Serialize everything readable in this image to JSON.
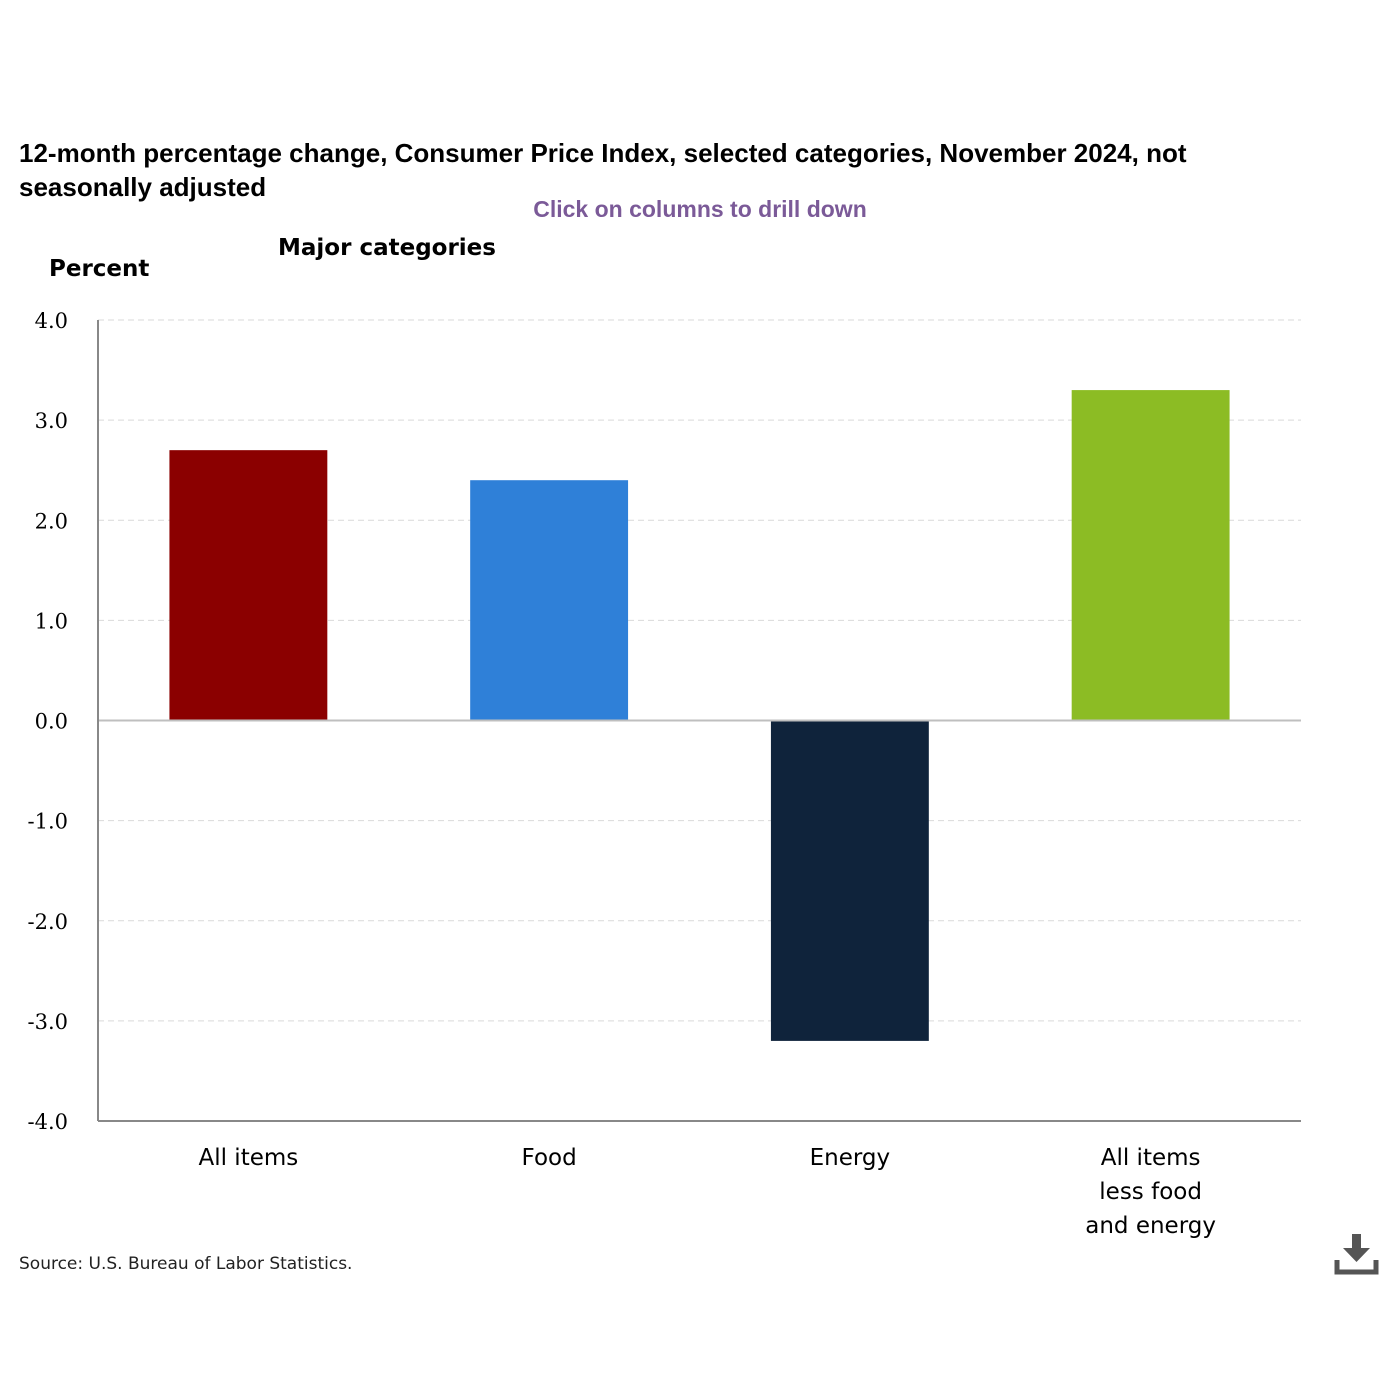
{
  "page": {
    "title": "12-month percentage change, Consumer Price Index, selected categories, November 2024, not seasonally adjusted",
    "drill_hint": "Click on columns to drill down",
    "source": "Source: U.S. Bureau of Labor Statistics.",
    "download_icon": "download-icon"
  },
  "chart_data": {
    "type": "bar",
    "subtitle": "Major categories",
    "ylabel": "Percent",
    "xlabel": "",
    "categories": [
      [
        "All items"
      ],
      [
        "Food"
      ],
      [
        "Energy"
      ],
      [
        "All items",
        "less food",
        "and energy"
      ]
    ],
    "values": [
      2.7,
      2.4,
      -3.2,
      3.3
    ],
    "colors": [
      "#8b0000",
      "#2f80d8",
      "#0f233b",
      "#8cbc24"
    ],
    "ylim": [
      -4.0,
      4.0
    ],
    "yticks": [
      4.0,
      3.0,
      2.0,
      1.0,
      0.0,
      -1.0,
      -2.0,
      -3.0,
      -4.0
    ],
    "grid": true,
    "legend": "none"
  }
}
